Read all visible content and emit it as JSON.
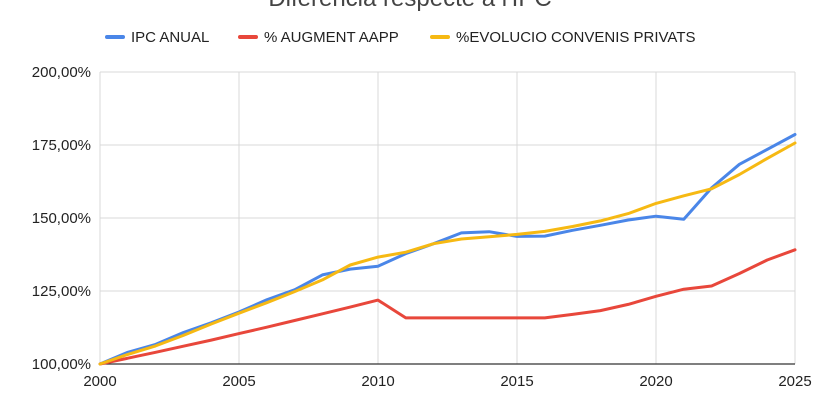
{
  "chart_data": {
    "type": "line",
    "title": "Diferència respecte a l'IPC",
    "xlabel": "",
    "ylabel": "",
    "xlim": [
      2000,
      2025
    ],
    "ylim": [
      100,
      200
    ],
    "x_ticks": [
      "2000",
      "2005",
      "2010",
      "2015",
      "2020",
      "2025"
    ],
    "y_ticks": [
      "100,00%",
      "125,00%",
      "150,00%",
      "175,00%",
      "200,00%"
    ],
    "grid": true,
    "legend_position": "top",
    "x": [
      2000,
      2001,
      2002,
      2003,
      2004,
      2005,
      2006,
      2007,
      2008,
      2009,
      2010,
      2011,
      2012,
      2013,
      2014,
      2015,
      2016,
      2017,
      2018,
      2019,
      2020,
      2021,
      2022,
      2023,
      2024,
      2025
    ],
    "series": [
      {
        "name": "IPC ANUAL",
        "color": "#4a86e8",
        "values": [
          100.0,
          104.0,
          106.7,
          110.8,
          114.1,
          117.8,
          122.0,
          125.4,
          130.5,
          132.5,
          133.5,
          137.8,
          141.2,
          144.9,
          145.3,
          143.7,
          143.8,
          145.8,
          147.5,
          149.3,
          150.6,
          149.6,
          160.3,
          168.4,
          173.5,
          178.6
        ]
      },
      {
        "name": "% AUGMENT AAPP",
        "color": "#e8473b",
        "values": [
          100.0,
          102.0,
          104.0,
          106.1,
          108.2,
          110.4,
          112.6,
          114.9,
          117.2,
          119.5,
          121.9,
          115.8,
          115.8,
          115.8,
          115.8,
          115.8,
          115.8,
          117.0,
          118.3,
          120.4,
          123.2,
          125.6,
          126.7,
          131.0,
          135.6,
          139.1
        ]
      },
      {
        "name": "%EVOLUCIO CONVENIS  PRIVATS",
        "color": "#f6b913",
        "values": [
          100.0,
          103.3,
          106.2,
          109.8,
          113.7,
          117.4,
          121.0,
          124.8,
          128.8,
          133.9,
          136.6,
          138.3,
          141.2,
          142.8,
          143.6,
          144.4,
          145.4,
          147.1,
          149.0,
          151.5,
          155.0,
          157.6,
          160.0,
          164.9,
          170.4,
          175.7
        ]
      }
    ]
  }
}
